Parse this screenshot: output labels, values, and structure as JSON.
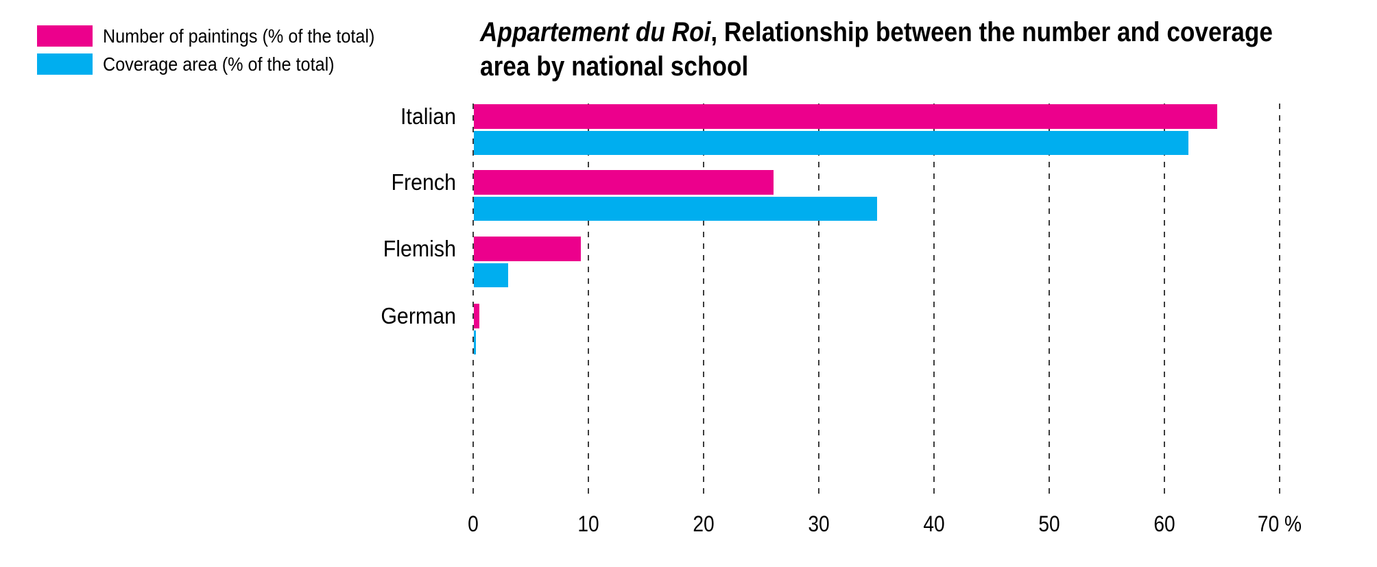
{
  "legend": {
    "items": [
      {
        "label": "Number of paintings (% of the total)",
        "color": "#EC008C"
      },
      {
        "label": "Coverage area (% of the total)",
        "color": "#00AEEF"
      }
    ]
  },
  "title": {
    "italic_part": "Appartement du Roi",
    "line1_rest": ", Relationship between the number and coverage",
    "line2": "area by national school"
  },
  "chart_data": {
    "type": "bar",
    "orientation": "horizontal",
    "title": "Appartement du Roi, Relationship between the number and coverage area by national school",
    "categories": [
      "Italian",
      "French",
      "Flemish",
      "German"
    ],
    "series": [
      {
        "name": "Number of paintings (% of the total)",
        "color": "#EC008C",
        "values": [
          64.5,
          26,
          9.3,
          0.5
        ]
      },
      {
        "name": "Coverage area (% of the total)",
        "color": "#00AEEF",
        "values": [
          62,
          35,
          3,
          0.15
        ]
      }
    ],
    "xlim": [
      0,
      70
    ],
    "xticks": [
      0,
      10,
      20,
      30,
      40,
      50,
      60,
      70
    ],
    "last_tick_suffix": " %",
    "grid": "dashed-vertical",
    "gridline_color": "#3c3c3c",
    "legend_position": "top-left",
    "background": "#ffffff"
  }
}
